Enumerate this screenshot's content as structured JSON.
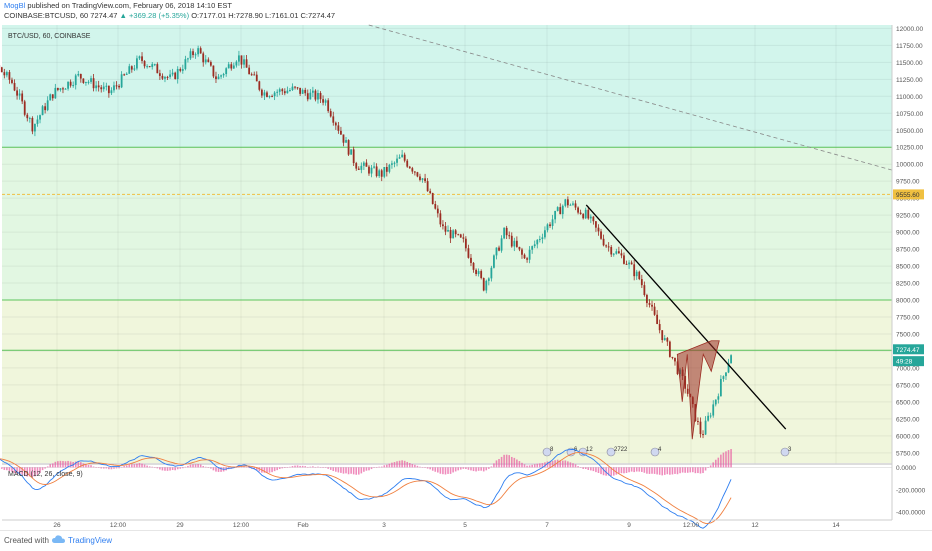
{
  "header": {
    "author": "MogBl",
    "published": "published on TradingView.com, February 06, 2018 14:10 EST",
    "line2_prefix": "COINBASE:BTCUSD, 60",
    "last": "7274.47",
    "change": "+369.28 (+5.35%)",
    "ohlc": "O:7177.01 H:7278.90 L:7161.01 C:7274.47"
  },
  "chart_data": [
    {
      "type": "candlestick",
      "legend": "BTC/USD, 60, COINBASE",
      "x_ticks": [
        "26",
        "12:00",
        "29",
        "12:00",
        "Feb",
        "3",
        "5",
        "7",
        "9",
        "12:00",
        "12",
        "14"
      ],
      "y_ticks": [
        "12000.00",
        "11750.00",
        "11500.00",
        "11250.00",
        "11000.00",
        "10750.00",
        "10500.00",
        "10250.00",
        "10000.00",
        "9750.00",
        "9500.00",
        "9250.00",
        "9000.00",
        "8750.00",
        "8500.00",
        "8250.00",
        "8000.00",
        "7750.00",
        "7500.00",
        "7250.00",
        "7000.00",
        "6750.00",
        "6500.00",
        "6250.00",
        "6000.00",
        "5750.00"
      ],
      "ylim": [
        5600,
        12050
      ],
      "price_labels": {
        "marker_level": "9555.60",
        "last_price": "7274.47",
        "countdown": "49:28"
      },
      "horizontal_levels": [
        10250,
        9555.6,
        8000,
        7260
      ],
      "shaded_zones": [
        {
          "from": 10250,
          "to": 12050,
          "color": "#d2f5ec"
        },
        {
          "from": 8000,
          "to": 10250,
          "color": "#e2f7e2"
        },
        {
          "from": 5600,
          "to": 8000,
          "color": "#f0f6dc"
        }
      ],
      "trendline": {
        "start": [
          "Feb 4",
          9400
        ],
        "end": [
          "Feb 7",
          6100
        ]
      },
      "dashed_trendline": {
        "start": [
          "Jan 30",
          12050
        ],
        "end": [
          "Feb 15",
          9750
        ]
      },
      "price_path": [
        [
          "Jan 25",
          11200
        ],
        [
          "Jan 25",
          11600
        ],
        [
          "Jan 26",
          11200
        ],
        [
          "Jan 26",
          10550
        ],
        [
          "Jan 26",
          11050
        ],
        [
          "Jan 27",
          11300
        ],
        [
          "Jan 27",
          11050
        ],
        [
          "Jan 28",
          11550
        ],
        [
          "Jan 28",
          11250
        ],
        [
          "Jan 29",
          11700
        ],
        [
          "Jan 29",
          11250
        ],
        [
          "Jan 29",
          11600
        ],
        [
          "Jan 30",
          11050
        ],
        [
          "Jan 30",
          11100
        ],
        [
          "Jan 31",
          10950
        ],
        [
          "Jan 31",
          10000
        ],
        [
          "Feb 1",
          9850
        ],
        [
          "Feb 1",
          10100
        ],
        [
          "Feb 1",
          9800
        ],
        [
          "Feb 2",
          9050
        ],
        [
          "Feb 2",
          8850
        ],
        [
          "Feb 2",
          8200
        ],
        [
          "Feb 3",
          9000
        ],
        [
          "Feb 3",
          8600
        ],
        [
          "Feb 3",
          9050
        ],
        [
          "Feb 4",
          9450
        ],
        [
          "Feb 4",
          9250
        ],
        [
          "Feb 4",
          8800
        ],
        [
          "Feb 5",
          8600
        ],
        [
          "Feb 5",
          8300
        ],
        [
          "Feb 5",
          7700
        ],
        [
          "Feb 5",
          7200
        ],
        [
          "Feb 6",
          6700
        ],
        [
          "Feb 6",
          6000
        ],
        [
          "Feb 6",
          6600
        ],
        [
          "Feb 6",
          7274.47
        ]
      ],
      "event_badges": [
        "8",
        "6",
        "12",
        "2722",
        "4",
        "3"
      ]
    },
    {
      "type": "line",
      "legend": "MACD (12, 26, close, 9)",
      "y_ticks": [
        "0.0000",
        "-200.0000",
        "-400.0000"
      ],
      "ylim": [
        -470,
        30
      ]
    }
  ],
  "footer": {
    "created": "Created with",
    "brand": "TradingView"
  },
  "colors": {
    "up": "#26a69a",
    "down": "#9b2c22",
    "line": "#2e7ef0",
    "level": "#5cc45c",
    "marker_level": "#f0c040",
    "macd": "#2e7ef0",
    "signal": "#f08040",
    "histogram": "#e85aa0"
  }
}
